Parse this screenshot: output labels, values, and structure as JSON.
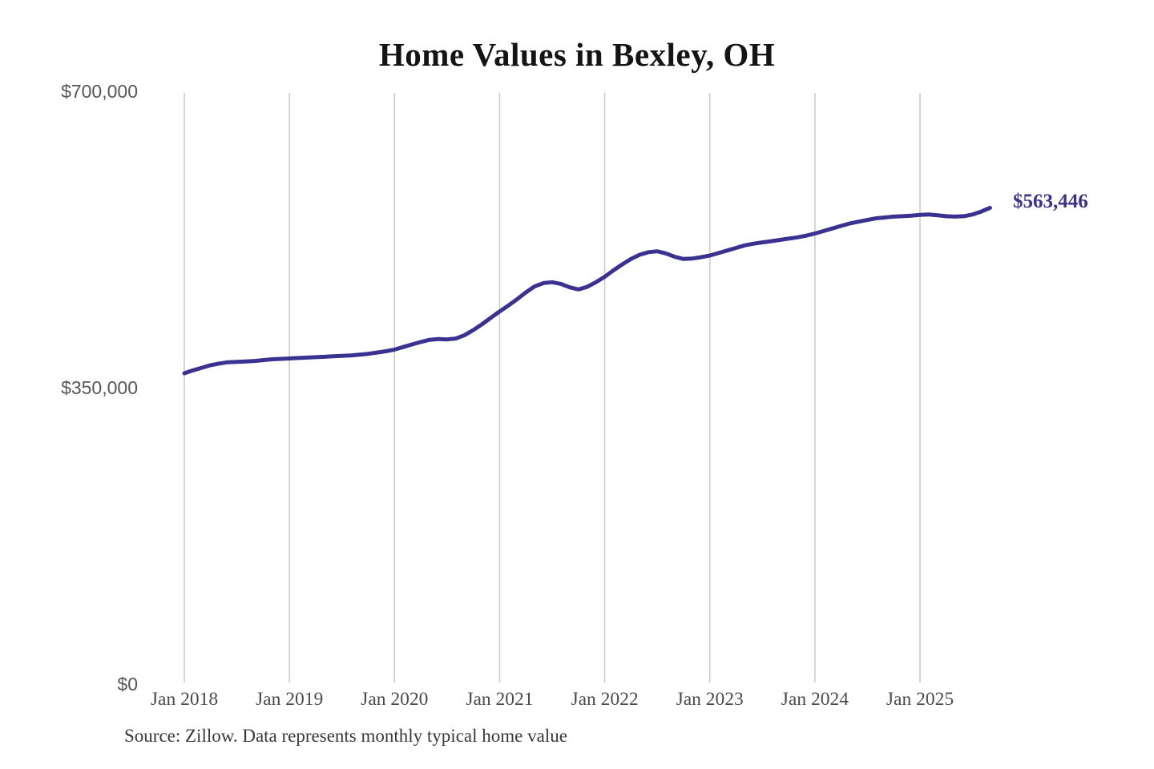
{
  "title": "Home Values in Bexley, OH",
  "source_note": "Source: Zillow. Data represents monthly typical home value",
  "colors": {
    "line": "#3a3191",
    "gridline": "#cbcbcb",
    "axis_text": "#4b4b4b",
    "title_text": "#141414",
    "annotation_text": "#3a3191"
  },
  "chart_data": {
    "type": "line",
    "title": "Home Values in Bexley, OH",
    "series_name": "Monthly typical home value",
    "xlabel": "",
    "ylabel": "",
    "ylim": [
      0,
      700000
    ],
    "grid": "vertical-only",
    "legend": "none",
    "y_ticks": [
      {
        "value": 0,
        "label": "$0"
      },
      {
        "value": 350000,
        "label": "$350,000"
      },
      {
        "value": 700000,
        "label": "$700,000"
      }
    ],
    "x_ticks": [
      "Jan 2018",
      "Jan 2019",
      "Jan 2020",
      "Jan 2021",
      "Jan 2022",
      "Jan 2023",
      "Jan 2024",
      "Jan 2025"
    ],
    "annotation": {
      "text": "$563,446",
      "x": "2025-09",
      "value": 563446
    },
    "x": [
      "2018-01",
      "2018-02",
      "2018-03",
      "2018-04",
      "2018-05",
      "2018-06",
      "2018-07",
      "2018-08",
      "2018-09",
      "2018-10",
      "2018-11",
      "2018-12",
      "2019-01",
      "2019-02",
      "2019-03",
      "2019-04",
      "2019-05",
      "2019-06",
      "2019-07",
      "2019-08",
      "2019-09",
      "2019-10",
      "2019-11",
      "2019-12",
      "2020-01",
      "2020-02",
      "2020-03",
      "2020-04",
      "2020-05",
      "2020-06",
      "2020-07",
      "2020-08",
      "2020-09",
      "2020-10",
      "2020-11",
      "2020-12",
      "2021-01",
      "2021-02",
      "2021-03",
      "2021-04",
      "2021-05",
      "2021-06",
      "2021-07",
      "2021-08",
      "2021-09",
      "2021-10",
      "2021-11",
      "2021-12",
      "2022-01",
      "2022-02",
      "2022-03",
      "2022-04",
      "2022-05",
      "2022-06",
      "2022-07",
      "2022-08",
      "2022-09",
      "2022-10",
      "2022-11",
      "2022-12",
      "2023-01",
      "2023-02",
      "2023-03",
      "2023-04",
      "2023-05",
      "2023-06",
      "2023-07",
      "2023-08",
      "2023-09",
      "2023-10",
      "2023-11",
      "2023-12",
      "2024-01",
      "2024-02",
      "2024-03",
      "2024-04",
      "2024-05",
      "2024-06",
      "2024-07",
      "2024-08",
      "2024-09",
      "2024-10",
      "2024-11",
      "2024-12",
      "2025-01",
      "2025-02",
      "2025-03",
      "2025-04",
      "2025-05",
      "2025-06",
      "2025-07",
      "2025-08",
      "2025-09"
    ],
    "values": [
      368000,
      371500,
      374500,
      377500,
      379500,
      381000,
      381500,
      382000,
      382500,
      383500,
      384500,
      385000,
      385500,
      386000,
      386500,
      387000,
      387500,
      388000,
      388500,
      389000,
      390000,
      391000,
      392500,
      394000,
      396000,
      399000,
      402000,
      405000,
      407500,
      408500,
      408000,
      409000,
      413000,
      419000,
      426000,
      433500,
      441000,
      448000,
      455500,
      463500,
      470500,
      474500,
      475500,
      473500,
      469500,
      467000,
      470000,
      475500,
      482000,
      489500,
      496500,
      503000,
      508000,
      511000,
      512000,
      509500,
      505500,
      503000,
      503500,
      505000,
      507000,
      510000,
      513000,
      516000,
      519000,
      521000,
      522500,
      524000,
      525500,
      527000,
      528500,
      530500,
      533000,
      536000,
      539000,
      542000,
      545000,
      547000,
      549000,
      551000,
      552000,
      553000,
      553500,
      554000,
      555000,
      555500,
      554500,
      553500,
      553000,
      553500,
      555500,
      559000,
      563446
    ]
  }
}
